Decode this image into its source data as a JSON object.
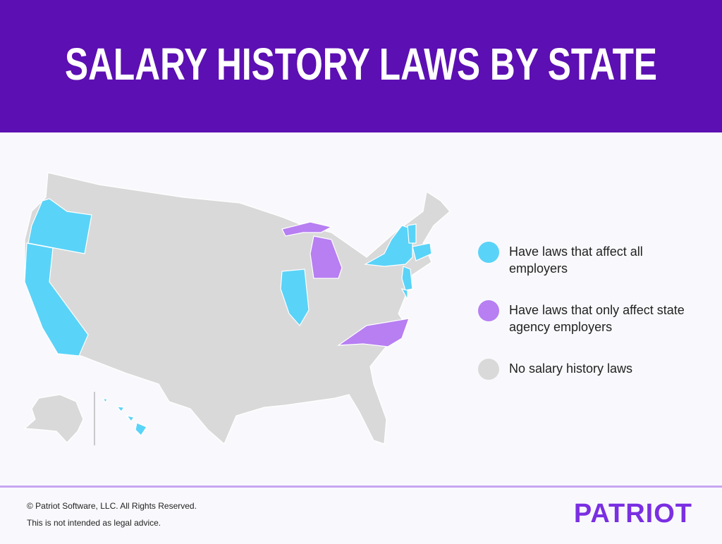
{
  "header": {
    "title": "SALARY HISTORY LAWS BY STATE"
  },
  "legend": [
    {
      "label": "Have laws that affect all employers",
      "color": "#5ad3f8"
    },
    {
      "label": "Have laws that only affect state agency employers",
      "color": "#b77ff2"
    },
    {
      "label": "No salary history laws",
      "color": "#d9d9d9"
    }
  ],
  "footer": {
    "copyright": "© Patriot Software, LLC. All Rights Reserved.",
    "disclaimer": "This is not intended as legal advice.",
    "logo": "PATRIOT"
  }
}
